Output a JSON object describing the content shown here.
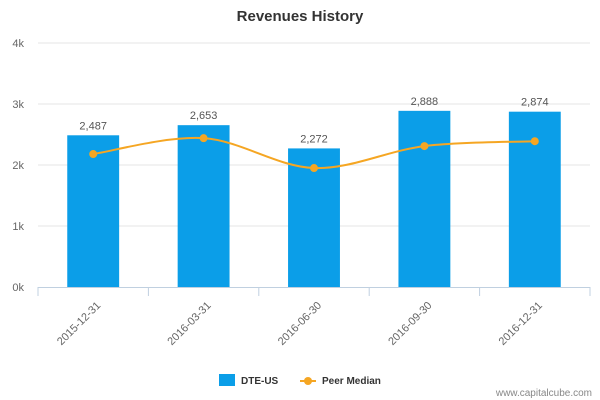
{
  "chart_data": {
    "type": "bar",
    "title": "Revenues History",
    "categories": [
      "2015-12-31",
      "2016-03-31",
      "2016-06-30",
      "2016-09-30",
      "2016-12-31"
    ],
    "series": [
      {
        "name": "DTE-US",
        "type": "bar",
        "values": [
          2487,
          2653,
          2272,
          2888,
          2874
        ],
        "labels": [
          "2,487",
          "2,653",
          "2,272",
          "2,888",
          "2,874"
        ],
        "color": "#0b9ee8"
      },
      {
        "name": "Peer Median",
        "type": "line",
        "values": [
          2180,
          2440,
          1950,
          2310,
          2390
        ],
        "color": "#f5a623"
      }
    ],
    "ylim": [
      0,
      4000
    ],
    "yticks": [
      0,
      1000,
      2000,
      3000,
      4000
    ],
    "ytick_labels": [
      "0k",
      "1k",
      "2k",
      "3k",
      "4k"
    ],
    "xlabel": "",
    "ylabel": "",
    "grid": true,
    "legend": "bottom-center"
  },
  "watermark": "www.capitalcube.com"
}
